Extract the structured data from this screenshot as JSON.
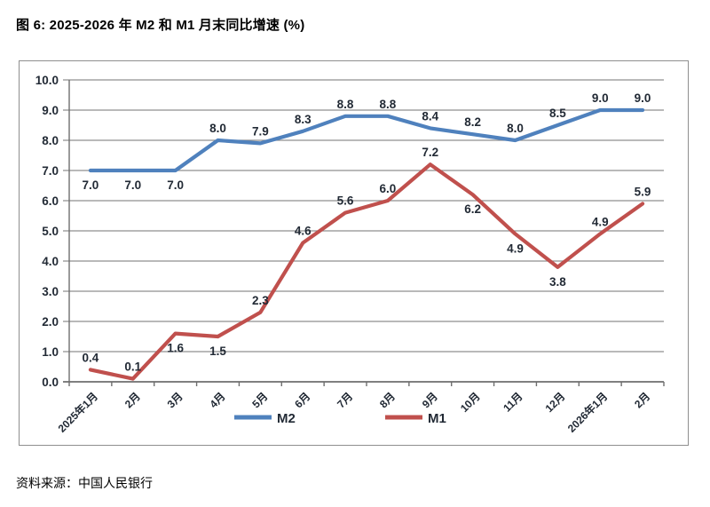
{
  "title": "图 6: 2025-2026 年 M2 和 M1 月末同比增速 (%)",
  "source": "资料来源：中国人民银行",
  "chart_data": {
    "type": "line",
    "title": "图 6: 2025-2026 年 M2 和 M1 月末同比增速 (%)",
    "xlabel": "",
    "ylabel": "",
    "categories": [
      "2025年1月",
      "2月",
      "3月",
      "4月",
      "5月",
      "6月",
      "7月",
      "8月",
      "9月",
      "10月",
      "11月",
      "12月",
      "2026年1月",
      "2月"
    ],
    "series": [
      {
        "name": "M2",
        "color": "#4f81bd",
        "values": [
          7.0,
          7.0,
          7.0,
          8.0,
          7.9,
          8.3,
          8.8,
          8.8,
          8.4,
          8.2,
          8.0,
          8.5,
          9.0,
          9.0
        ],
        "label_side": [
          "below",
          "below",
          "below",
          "above",
          "above",
          "above",
          "above",
          "above",
          "above",
          "above",
          "above",
          "above",
          "above",
          "above"
        ]
      },
      {
        "name": "M1",
        "color": "#c0504d",
        "values": [
          0.4,
          0.1,
          1.6,
          1.5,
          2.3,
          4.6,
          5.6,
          6.0,
          7.2,
          6.2,
          4.9,
          3.8,
          4.9,
          5.9
        ],
        "label_side": [
          "above",
          "above",
          "below",
          "below",
          "above",
          "above",
          "above",
          "above",
          "above",
          "below",
          "below",
          "below",
          "above",
          "above"
        ]
      }
    ],
    "ylim": [
      0,
      10
    ],
    "ytick_step": 1.0,
    "ytick_decimals": 1,
    "data_label_decimals": 1,
    "grid": true,
    "legend_position": "bottom",
    "colors": {
      "gridline": "#8f8f8f",
      "axis": "#6e6e6e",
      "tick_text": "#222a35",
      "data_label_text": "#222a35",
      "border": "#8f8f8f"
    }
  }
}
